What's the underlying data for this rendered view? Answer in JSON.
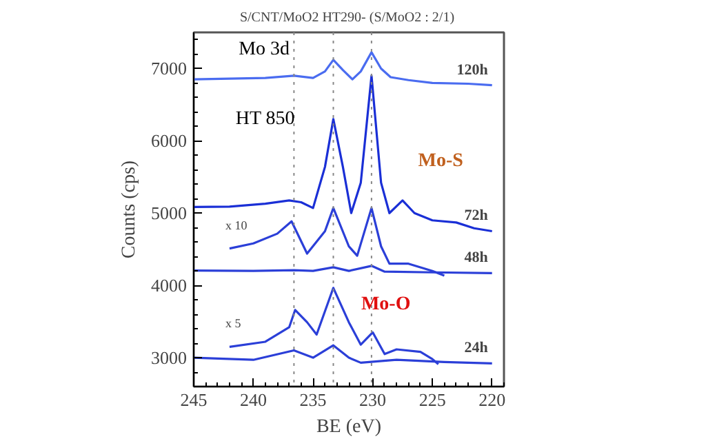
{
  "chart_data": {
    "type": "line",
    "title": "S/CNT/MoO2 HT290-  (S/MoO2 : 2/1)",
    "xlabel": "BE (eV)",
    "ylabel": "Counts (cps)",
    "xlim": [
      245,
      219
    ],
    "xticks": [
      245,
      240,
      235,
      230,
      225,
      220
    ],
    "ylim": [
      2600,
      7500
    ],
    "yticks": [
      3000,
      4000,
      5000,
      6000,
      7000
    ],
    "grid": false,
    "marker": "none",
    "line_style": "solid",
    "series": [
      {
        "name": "120h",
        "color": "#4a6cf0",
        "x": [
          245,
          242,
          239,
          236.6,
          235,
          234,
          233.3,
          232.5,
          231.7,
          231,
          230.1,
          229.3,
          228.5,
          227,
          225,
          222,
          220
        ],
        "values": [
          6850,
          6860,
          6870,
          6900,
          6870,
          6960,
          7120,
          6980,
          6850,
          6960,
          7225,
          7000,
          6880,
          6840,
          6800,
          6790,
          6770
        ]
      },
      {
        "name": "72h",
        "color": "#1a2fd6",
        "x": [
          245,
          242,
          239,
          237,
          236,
          235,
          234,
          233.3,
          232.5,
          231.8,
          231,
          230.1,
          229.3,
          228.6,
          227.5,
          226.5,
          225,
          223,
          221.5,
          220
        ],
        "values": [
          5085,
          5090,
          5130,
          5175,
          5150,
          5070,
          5640,
          6300,
          5640,
          5000,
          5420,
          6900,
          5420,
          5000,
          5175,
          5000,
          4900,
          4870,
          4790,
          4750
        ]
      },
      {
        "name": "x 10",
        "color": "#2b3fd8",
        "x": [
          242,
          240,
          238,
          236.8,
          235.5,
          234,
          233.3,
          232,
          231.3,
          230.1,
          229.3,
          228.6,
          227,
          225,
          224
        ],
        "values": [
          4510,
          4580,
          4715,
          4885,
          4440,
          4750,
          5070,
          4540,
          4410,
          5070,
          4540,
          4300,
          4300,
          4200,
          4135
        ]
      },
      {
        "name": "48h",
        "color": "#2b3fd8",
        "x": [
          245,
          240,
          236.6,
          235,
          233.3,
          232,
          230.1,
          229,
          225,
          220
        ],
        "values": [
          4205,
          4200,
          4210,
          4200,
          4250,
          4200,
          4270,
          4190,
          4180,
          4170
        ]
      },
      {
        "name": "x 5",
        "color": "#2b3fd8",
        "x": [
          242,
          239,
          237,
          236.5,
          235.5,
          234.7,
          233.3,
          232,
          231,
          230,
          229,
          228,
          226,
          225,
          224.5
        ],
        "values": [
          3150,
          3220,
          3420,
          3660,
          3490,
          3320,
          3965,
          3490,
          3180,
          3350,
          3050,
          3115,
          3080,
          2980,
          2910
        ]
      },
      {
        "name": "24h",
        "color": "#2b3fd8",
        "x": [
          245,
          240,
          236.6,
          235,
          233.3,
          232,
          231,
          228,
          224,
          220
        ],
        "values": [
          3000,
          2970,
          3100,
          3000,
          3170,
          3000,
          2930,
          2970,
          2940,
          2920
        ]
      }
    ],
    "ref_lines": [
      {
        "axis": "x",
        "value": 236.6,
        "color": "#888888",
        "line_style": "dotted"
      },
      {
        "axis": "x",
        "value": 233.3,
        "color": "#888888",
        "line_style": "dotted"
      },
      {
        "axis": "x",
        "value": 230.1,
        "color": "#888888",
        "line_style": "dotted"
      }
    ],
    "annotations": [
      "Mo 3d",
      "HT 850",
      "Mo-S",
      "Mo-O"
    ]
  }
}
